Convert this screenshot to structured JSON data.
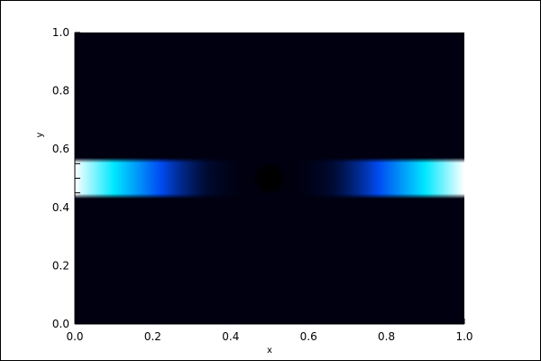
{
  "chart_data": {
    "type": "heatmap",
    "title": "",
    "xlabel": "x",
    "ylabel": "y",
    "xlim": [
      0.0,
      1.0
    ],
    "ylim": [
      0.0,
      1.0
    ],
    "x_ticks": [
      "0.0",
      "0.2",
      "0.4",
      "0.6",
      "0.8",
      "1.0"
    ],
    "y_ticks": [
      "0.0",
      "0.2",
      "0.4",
      "0.6",
      "0.8",
      "1.0"
    ],
    "x_tick_values": [
      0.0,
      0.2,
      0.4,
      0.6,
      0.8,
      1.0
    ],
    "y_tick_values": [
      0.0,
      0.2,
      0.4,
      0.6,
      0.8,
      1.0
    ],
    "y_minor_tick_values": [
      0.45,
      0.5,
      0.55
    ],
    "grid": false,
    "colormap": [
      "#000010",
      "#001060",
      "#0060ff",
      "#00d8ff",
      "#ffffff"
    ],
    "features": [
      {
        "kind": "band",
        "y_center": 0.5,
        "y_halfwidth": 0.07,
        "x_ranges": [
          [
            0.0,
            0.33
          ],
          [
            0.67,
            1.0
          ]
        ],
        "peak": 1.0
      },
      {
        "kind": "dark-spot",
        "x": 0.5,
        "y": 0.5,
        "radius": 0.05
      }
    ]
  }
}
